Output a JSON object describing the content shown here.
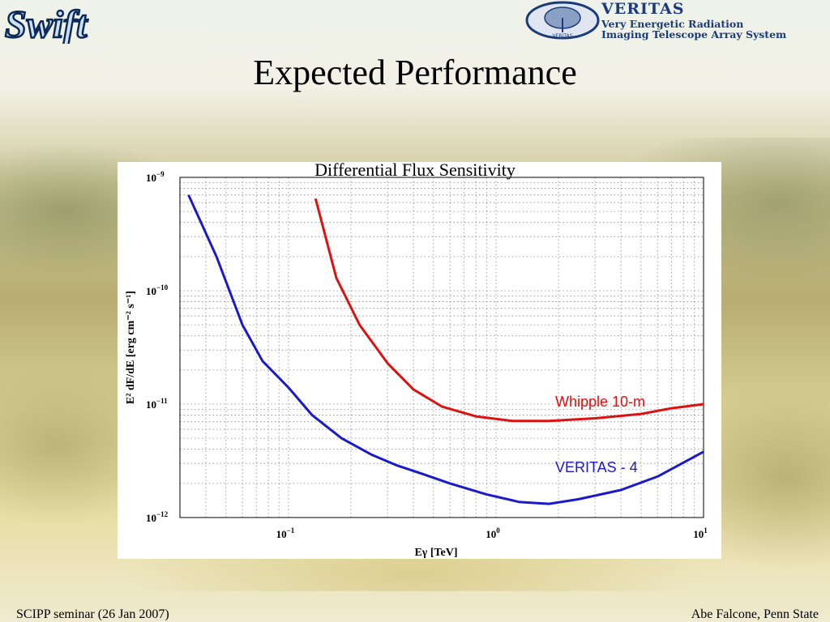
{
  "slide": {
    "title": "Expected Performance",
    "footer_left": "SCIPP seminar (26 Jan 2007)",
    "footer_right": "Abe Falcone, Penn State"
  },
  "logos": {
    "left_text": "Swift",
    "right_title": "VERITAS",
    "right_line1": "Very Energetic Radiation",
    "right_line2": "Imaging Telescope Array System",
    "right_seal_text": "VERITAS"
  },
  "chart_data": {
    "type": "line",
    "title": "Differential Flux Sensitivity",
    "xlabel": "Eγ  [TeV]",
    "ylabel": "E² dF/dE   [erg cm⁻² s⁻¹]",
    "xscale": "log",
    "yscale": "log",
    "xlim": [
      0.03,
      10
    ],
    "ylim": [
      1e-12,
      1e-09
    ],
    "x_ticks": [
      {
        "value": 0.1,
        "base": "10",
        "exp": "−1"
      },
      {
        "value": 1,
        "base": "10",
        "exp": "0"
      },
      {
        "value": 10,
        "base": "10",
        "exp": "1"
      }
    ],
    "y_ticks": [
      {
        "value": 1e-12,
        "base": "10",
        "exp": "−12"
      },
      {
        "value": 1e-11,
        "base": "10",
        "exp": "−11"
      },
      {
        "value": 1e-10,
        "base": "10",
        "exp": "−10"
      },
      {
        "value": 1e-09,
        "base": "10",
        "exp": "−9"
      }
    ],
    "grid": true,
    "series": [
      {
        "name": "Whipple 10-m",
        "color": "#dd1111",
        "x": [
          0.135,
          0.17,
          0.22,
          0.3,
          0.4,
          0.55,
          0.8,
          1.2,
          1.8,
          3,
          5,
          7,
          10
        ],
        "y": [
          6.5e-10,
          1.3e-10,
          5e-11,
          2.3e-11,
          1.35e-11,
          9.5e-12,
          7.8e-12,
          7.1e-12,
          7.1e-12,
          7.5e-12,
          8.2e-12,
          9.2e-12,
          1e-11
        ]
      },
      {
        "name": "VERITAS - 4",
        "color": "#1a1acc",
        "x": [
          0.033,
          0.045,
          0.06,
          0.075,
          0.1,
          0.13,
          0.18,
          0.25,
          0.33,
          0.45,
          0.6,
          0.9,
          1.3,
          1.8,
          2.5,
          4,
          6,
          10
        ],
        "y": [
          7e-10,
          2e-10,
          5e-11,
          2.4e-11,
          1.4e-11,
          8e-12,
          5e-12,
          3.6e-12,
          2.9e-12,
          2.4e-12,
          2e-12,
          1.6e-12,
          1.37e-12,
          1.32e-12,
          1.45e-12,
          1.75e-12,
          2.3e-12,
          3.8e-12
        ]
      }
    ]
  }
}
